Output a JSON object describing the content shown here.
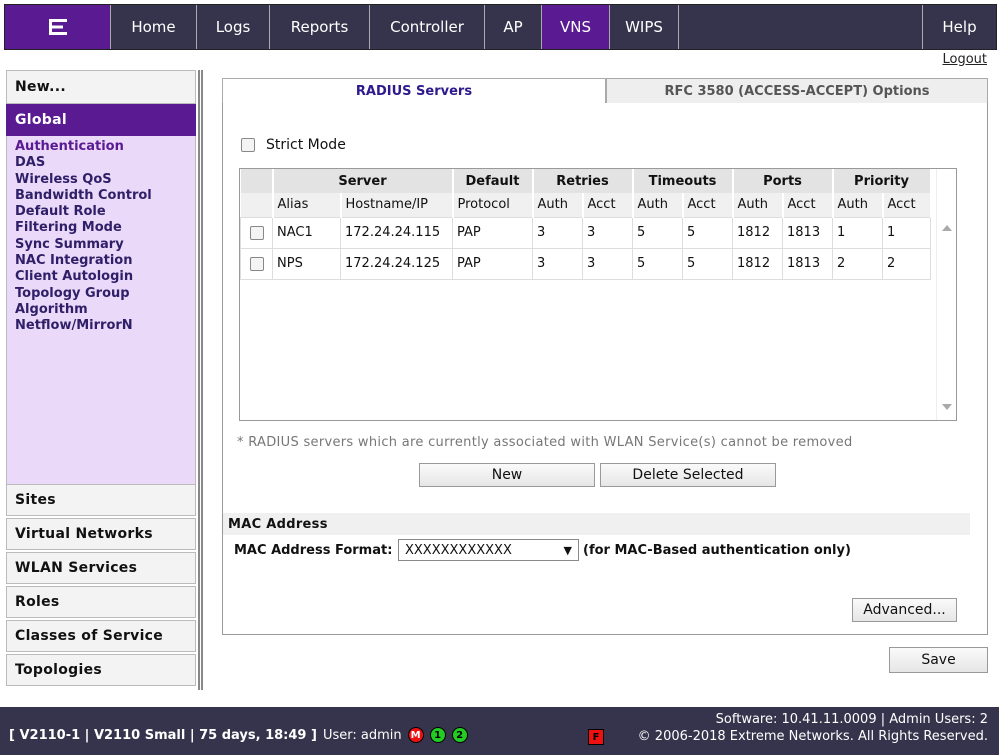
{
  "nav": {
    "items": [
      "Home",
      "Logs",
      "Reports",
      "Controller",
      "AP",
      "VNS",
      "WIPS"
    ],
    "active": "VNS",
    "help": "Help",
    "logout": "Logout"
  },
  "sidebar": {
    "new_label": "New...",
    "global_label": "Global",
    "global_items": [
      "Authentication",
      "DAS",
      "Wireless QoS",
      "Bandwidth Control",
      "Default Role",
      "Filtering Mode",
      "Sync Summary",
      "NAC Integration",
      "Client Autologin",
      "Topology Group",
      "Algorithm",
      "Netflow/MirrorN"
    ],
    "sections": [
      "Sites",
      "Virtual Networks",
      "WLAN Services",
      "Roles",
      "Classes of Service",
      "Topologies"
    ]
  },
  "tabs": {
    "radius": "RADIUS Servers",
    "rfc": "RFC 3580 (ACCESS-ACCEPT) Options"
  },
  "strict_mode": "Strict Mode",
  "table": {
    "groups": [
      "Server",
      "Default",
      "Retries",
      "Timeouts",
      "Ports",
      "Priority"
    ],
    "columns": [
      "Alias",
      "Hostname/IP",
      "Protocol",
      "Auth",
      "Acct",
      "Auth",
      "Acct",
      "Auth",
      "Acct",
      "Auth",
      "Acct"
    ],
    "rows": [
      [
        "NAC1",
        "172.24.24.115",
        "PAP",
        "3",
        "3",
        "5",
        "5",
        "1812",
        "1813",
        "1",
        "1"
      ],
      [
        "NPS",
        "172.24.24.125",
        "PAP",
        "3",
        "3",
        "5",
        "5",
        "1812",
        "1813",
        "2",
        "2"
      ]
    ]
  },
  "note": "* RADIUS servers which are currently associated with WLAN Service(s) cannot be removed",
  "buttons": {
    "new": "New",
    "delete": "Delete Selected",
    "advanced": "Advanced...",
    "save": "Save"
  },
  "mac": {
    "section": "MAC Address",
    "label": "MAC Address Format:",
    "value": "XXXXXXXXXXXX",
    "note": "(for MAC-Based authentication only)"
  },
  "footer": {
    "device": "[ V2110-1 | V2110 Small | 75 days, 18:49 ]",
    "user": "User: admin",
    "badges": [
      "M",
      "1",
      "2"
    ],
    "flag": "F",
    "software": "Software: 10.41.11.0009 | Admin Users: 2",
    "copyright": "© 2006-2018  Extreme Networks. All Rights Reserved."
  },
  "colors": {
    "nav_bg": "#35344c",
    "accent": "#5a1a92",
    "sidebar_bg": "#ead9f8"
  }
}
